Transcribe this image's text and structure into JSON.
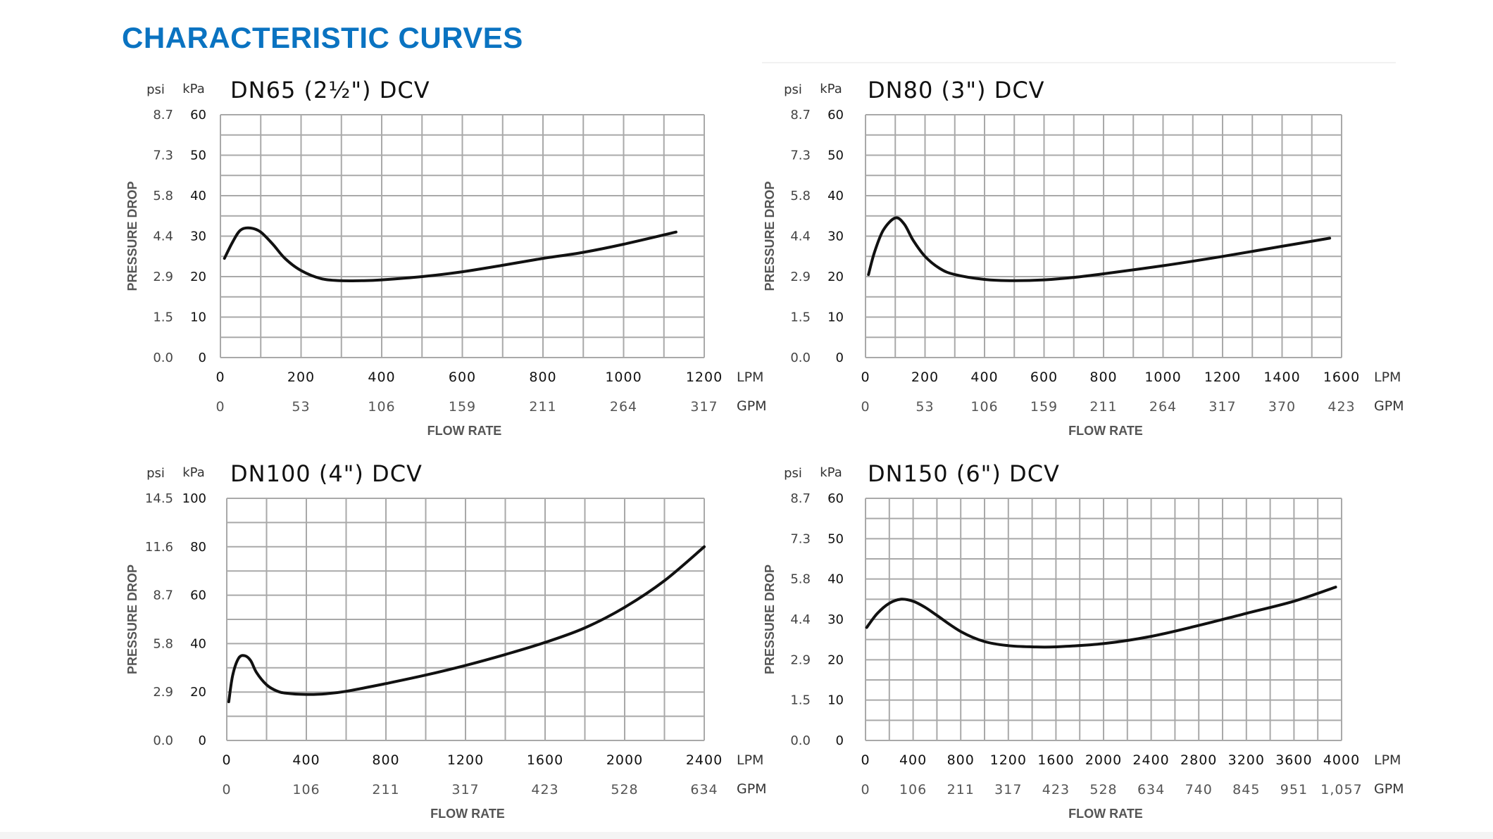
{
  "page": {
    "title": "CHARACTERISTIC CURVES",
    "title_color": "#0a73c1"
  },
  "chart_data": [
    {
      "type": "line",
      "title": "DN65 (2½\") DCV",
      "xlabel": "FLOW RATE",
      "ylabel": "PRESSURE DROP",
      "x_unit": "LPM",
      "x2_unit": "GPM",
      "y_unit": "kPa",
      "y2_unit": "psi",
      "xlim": [
        0,
        1200
      ],
      "ylim": [
        0,
        60
      ],
      "x_ticks": [
        0,
        200,
        400,
        600,
        800,
        1000,
        1200
      ],
      "x_tick_labels": [
        "0",
        "200",
        "400",
        "600",
        "800",
        "1000",
        "1200"
      ],
      "x2_tick_labels": [
        "0",
        "53",
        "106",
        "159",
        "211",
        "264",
        "317"
      ],
      "y_ticks": [
        0,
        10,
        20,
        30,
        40,
        50,
        60
      ],
      "y_tick_labels": [
        "0",
        "10",
        "20",
        "30",
        "40",
        "50",
        "60"
      ],
      "y2_tick_labels": [
        "0.0",
        "1.5",
        "2.9",
        "4.4",
        "5.8",
        "7.3",
        "8.7"
      ],
      "x_minor": 100,
      "y_minor": 5,
      "series": [
        {
          "name": "DN65 (2½\") DCV",
          "x": [
            10,
            30,
            50,
            75,
            100,
            130,
            160,
            200,
            250,
            300,
            350,
            400,
            500,
            600,
            700,
            800,
            900,
            1000,
            1130
          ],
          "y": [
            24.5,
            28.5,
            31.5,
            32.0,
            31.0,
            28.0,
            24.5,
            21.5,
            19.5,
            19.0,
            19.0,
            19.2,
            20.0,
            21.2,
            22.8,
            24.5,
            26.0,
            28.0,
            31.0
          ]
        }
      ]
    },
    {
      "type": "line",
      "title": "DN80 (3\") DCV",
      "xlabel": "FLOW RATE",
      "ylabel": "PRESSURE DROP",
      "x_unit": "LPM",
      "x2_unit": "GPM",
      "y_unit": "kPa",
      "y2_unit": "psi",
      "xlim": [
        0,
        1600
      ],
      "ylim": [
        0,
        60
      ],
      "x_ticks": [
        0,
        200,
        400,
        600,
        800,
        1000,
        1200,
        1400,
        1600
      ],
      "x_tick_labels": [
        "0",
        "200",
        "400",
        "600",
        "800",
        "1000",
        "1200",
        "1400",
        "1600"
      ],
      "x2_tick_labels": [
        "0",
        "53",
        "106",
        "159",
        "211",
        "264",
        "317",
        "370",
        "423"
      ],
      "y_ticks": [
        0,
        10,
        20,
        30,
        40,
        50,
        60
      ],
      "y_tick_labels": [
        "0",
        "10",
        "20",
        "30",
        "40",
        "50",
        "60"
      ],
      "y2_tick_labels": [
        "0.0",
        "1.5",
        "2.9",
        "4.4",
        "5.8",
        "7.3",
        "8.7"
      ],
      "x_minor": 100,
      "y_minor": 5,
      "series": [
        {
          "name": "DN80 (3\") DCV",
          "x": [
            10,
            30,
            60,
            100,
            130,
            160,
            200,
            250,
            300,
            400,
            500,
            600,
            700,
            800,
            1000,
            1200,
            1400,
            1560
          ],
          "y": [
            20.5,
            26.0,
            31.5,
            34.5,
            33.0,
            29.0,
            25.0,
            22.0,
            20.5,
            19.3,
            19.0,
            19.2,
            19.8,
            20.7,
            22.7,
            25.0,
            27.5,
            29.5
          ]
        }
      ]
    },
    {
      "type": "line",
      "title": "DN100 (4\") DCV",
      "xlabel": "FLOW RATE",
      "ylabel": "PRESSURE DROP",
      "x_unit": "LPM",
      "x2_unit": "GPM",
      "y_unit": "kPa",
      "y2_unit": "psi",
      "xlim": [
        0,
        2400
      ],
      "ylim": [
        0,
        100
      ],
      "x_ticks": [
        0,
        400,
        800,
        1200,
        1600,
        2000,
        2400
      ],
      "x_tick_labels": [
        "0",
        "400",
        "800",
        "1200",
        "1600",
        "2000",
        "2400"
      ],
      "x2_tick_labels": [
        "0",
        "106",
        "211",
        "317",
        "423",
        "528",
        "634"
      ],
      "y_ticks": [
        0,
        20,
        40,
        60,
        80,
        100
      ],
      "y_tick_labels": [
        "0",
        "20",
        "40",
        "60",
        "80",
        "100"
      ],
      "y2_tick_labels": [
        "0.0",
        "2.9",
        "5.8",
        "8.7",
        "11.6",
        "14.5"
      ],
      "x_minor": 200,
      "y_minor": 10,
      "series": [
        {
          "name": "DN100 (4\") DCV",
          "x": [
            10,
            30,
            60,
            90,
            120,
            150,
            200,
            250,
            300,
            400,
            500,
            600,
            800,
            1000,
            1200,
            1400,
            1600,
            1800,
            2000,
            2200,
            2400
          ],
          "y": [
            16.0,
            27.0,
            34.0,
            35.0,
            33.0,
            28.0,
            23.0,
            20.5,
            19.5,
            19.0,
            19.3,
            20.3,
            23.5,
            27.0,
            31.0,
            35.5,
            40.5,
            46.5,
            55.0,
            66.0,
            80.0
          ]
        }
      ]
    },
    {
      "type": "line",
      "title": "DN150 (6\") DCV",
      "xlabel": "FLOW RATE",
      "ylabel": "PRESSURE DROP",
      "x_unit": "LPM",
      "x2_unit": "GPM",
      "y_unit": "kPa",
      "y2_unit": "psi",
      "xlim": [
        0,
        4000
      ],
      "ylim": [
        0,
        60
      ],
      "x_ticks": [
        0,
        400,
        800,
        1200,
        1600,
        2000,
        2400,
        2800,
        3200,
        3600,
        4000
      ],
      "x_tick_labels": [
        "0",
        "400",
        "800",
        "1200",
        "1600",
        "2000",
        "2400",
        "2800",
        "3200",
        "3600",
        "4000"
      ],
      "x2_tick_labels": [
        "0",
        "106",
        "211",
        "317",
        "423",
        "528",
        "634",
        "740",
        "845",
        "951",
        "1,057"
      ],
      "y_ticks": [
        0,
        10,
        20,
        30,
        40,
        50,
        60
      ],
      "y_tick_labels": [
        "0",
        "10",
        "20",
        "30",
        "40",
        "50",
        "60"
      ],
      "y2_tick_labels": [
        "0.0",
        "1.5",
        "2.9",
        "4.4",
        "5.8",
        "7.3",
        "8.7"
      ],
      "x_minor": 200,
      "y_minor": 5,
      "series": [
        {
          "name": "DN150 (6\") DCV",
          "x": [
            10,
            100,
            200,
            300,
            400,
            500,
            600,
            800,
            1000,
            1200,
            1400,
            1600,
            2000,
            2400,
            2800,
            3200,
            3600,
            3950
          ],
          "y": [
            28.0,
            31.5,
            34.0,
            35.0,
            34.5,
            33.0,
            31.0,
            27.0,
            24.5,
            23.5,
            23.2,
            23.2,
            24.0,
            25.8,
            28.5,
            31.5,
            34.5,
            38.0
          ]
        }
      ]
    }
  ]
}
